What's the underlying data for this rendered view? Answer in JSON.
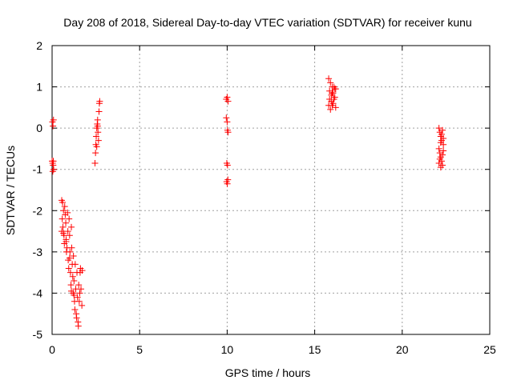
{
  "chart_data": {
    "type": "scatter",
    "title": "Day 208 of 2018, Sidereal Day-to-day VTEC variation (SDTVAR) for receiver kunu",
    "xlabel": "GPS time / hours",
    "ylabel": "SDTVAR / TECUs",
    "xlim": [
      0,
      25
    ],
    "ylim": [
      -5,
      2
    ],
    "xticks": [
      0,
      5,
      10,
      15,
      20,
      25
    ],
    "yticks": [
      -5,
      -4,
      -3,
      -2,
      -1,
      0,
      1,
      2
    ],
    "grid": true,
    "marker": "+",
    "series": [
      {
        "name": "SDTVAR",
        "color": "#ff0000",
        "points": [
          [
            0.02,
            0.15
          ],
          [
            0.05,
            0.05
          ],
          [
            0.08,
            0.2
          ],
          [
            0.0,
            -0.8
          ],
          [
            0.03,
            -0.85
          ],
          [
            0.06,
            -0.9
          ],
          [
            0.09,
            -1.0
          ],
          [
            0.04,
            -1.05
          ],
          [
            0.07,
            -0.8
          ],
          [
            0.55,
            -1.75
          ],
          [
            0.6,
            -1.8
          ],
          [
            0.65,
            -2.0
          ],
          [
            0.58,
            -2.2
          ],
          [
            0.62,
            -2.4
          ],
          [
            0.68,
            -2.6
          ],
          [
            0.55,
            -2.5
          ],
          [
            0.7,
            -2.8
          ],
          [
            0.72,
            -1.9
          ],
          [
            0.75,
            -2.1
          ],
          [
            0.78,
            -2.3
          ],
          [
            0.8,
            -2.7
          ],
          [
            0.82,
            -3.0
          ],
          [
            0.85,
            -2.9
          ],
          [
            0.88,
            -2.05
          ],
          [
            0.9,
            -2.5
          ],
          [
            0.92,
            -3.2
          ],
          [
            0.95,
            -3.4
          ],
          [
            0.97,
            -2.2
          ],
          [
            1.0,
            -2.6
          ],
          [
            1.02,
            -3.0
          ],
          [
            1.05,
            -3.5
          ],
          [
            1.08,
            -3.8
          ],
          [
            1.1,
            -2.4
          ],
          [
            1.12,
            -2.9
          ],
          [
            1.15,
            -3.3
          ],
          [
            1.18,
            -3.6
          ],
          [
            1.2,
            -4.0
          ],
          [
            1.22,
            -3.1
          ],
          [
            1.25,
            -3.7
          ],
          [
            1.28,
            -4.2
          ],
          [
            1.3,
            -4.4
          ],
          [
            1.32,
            -3.3
          ],
          [
            1.35,
            -3.9
          ],
          [
            1.38,
            -4.5
          ],
          [
            1.4,
            -4.6
          ],
          [
            1.42,
            -3.5
          ],
          [
            1.45,
            -4.1
          ],
          [
            1.48,
            -4.7
          ],
          [
            1.5,
            -4.8
          ],
          [
            1.52,
            -3.8
          ],
          [
            1.55,
            -4.2
          ],
          [
            1.58,
            -4.0
          ],
          [
            1.6,
            -3.5
          ],
          [
            1.62,
            -3.4
          ],
          [
            1.65,
            -3.9
          ],
          [
            1.7,
            -4.3
          ],
          [
            1.72,
            -3.45
          ],
          [
            1.0,
            -3.15
          ],
          [
            0.8,
            -2.75
          ],
          [
            1.1,
            -3.95
          ],
          [
            1.25,
            -4.05
          ],
          [
            0.65,
            -2.55
          ],
          [
            2.45,
            -0.85
          ],
          [
            2.48,
            -0.6
          ],
          [
            2.5,
            -0.4
          ],
          [
            2.52,
            -0.2
          ],
          [
            2.55,
            0.0
          ],
          [
            2.58,
            0.1
          ],
          [
            2.6,
            0.2
          ],
          [
            2.62,
            -0.1
          ],
          [
            2.65,
            -0.3
          ],
          [
            2.68,
            0.4
          ],
          [
            2.7,
            0.6
          ],
          [
            2.72,
            0.65
          ],
          [
            2.55,
            -0.45
          ],
          [
            2.6,
            0.05
          ],
          [
            9.95,
            0.7
          ],
          [
            10.0,
            0.75
          ],
          [
            10.05,
            0.65
          ],
          [
            9.95,
            0.25
          ],
          [
            10.0,
            0.15
          ],
          [
            10.02,
            -0.05
          ],
          [
            10.05,
            -0.1
          ],
          [
            9.98,
            -0.85
          ],
          [
            10.02,
            -0.9
          ],
          [
            9.97,
            -1.3
          ],
          [
            10.01,
            -1.35
          ],
          [
            10.04,
            -1.25
          ],
          [
            15.8,
            1.2
          ],
          [
            15.85,
            0.9
          ],
          [
            15.9,
            1.1
          ],
          [
            15.95,
            0.8
          ],
          [
            16.0,
            1.0
          ],
          [
            16.05,
            0.6
          ],
          [
            16.1,
            0.7
          ],
          [
            16.15,
            0.95
          ],
          [
            16.2,
            0.5
          ],
          [
            15.9,
            0.45
          ],
          [
            15.95,
            0.65
          ],
          [
            16.0,
            0.55
          ],
          [
            16.05,
            0.85
          ],
          [
            16.1,
            1.0
          ],
          [
            16.15,
            0.75
          ],
          [
            16.2,
            0.95
          ],
          [
            15.85,
            0.7
          ],
          [
            15.8,
            0.55
          ],
          [
            16.0,
            0.85
          ],
          [
            22.1,
            0.0
          ],
          [
            22.15,
            -0.1
          ],
          [
            22.2,
            -0.2
          ],
          [
            22.25,
            -0.3
          ],
          [
            22.3,
            -0.05
          ],
          [
            22.35,
            -0.4
          ],
          [
            22.1,
            -0.5
          ],
          [
            22.15,
            -0.6
          ],
          [
            22.2,
            -0.7
          ],
          [
            22.25,
            -0.8
          ],
          [
            22.3,
            -0.9
          ],
          [
            22.35,
            -0.55
          ],
          [
            22.1,
            -0.85
          ],
          [
            22.15,
            -0.75
          ],
          [
            22.2,
            -0.35
          ],
          [
            22.25,
            -0.15
          ],
          [
            22.3,
            -0.65
          ],
          [
            22.35,
            -0.25
          ],
          [
            22.2,
            -0.95
          ]
        ]
      }
    ]
  }
}
